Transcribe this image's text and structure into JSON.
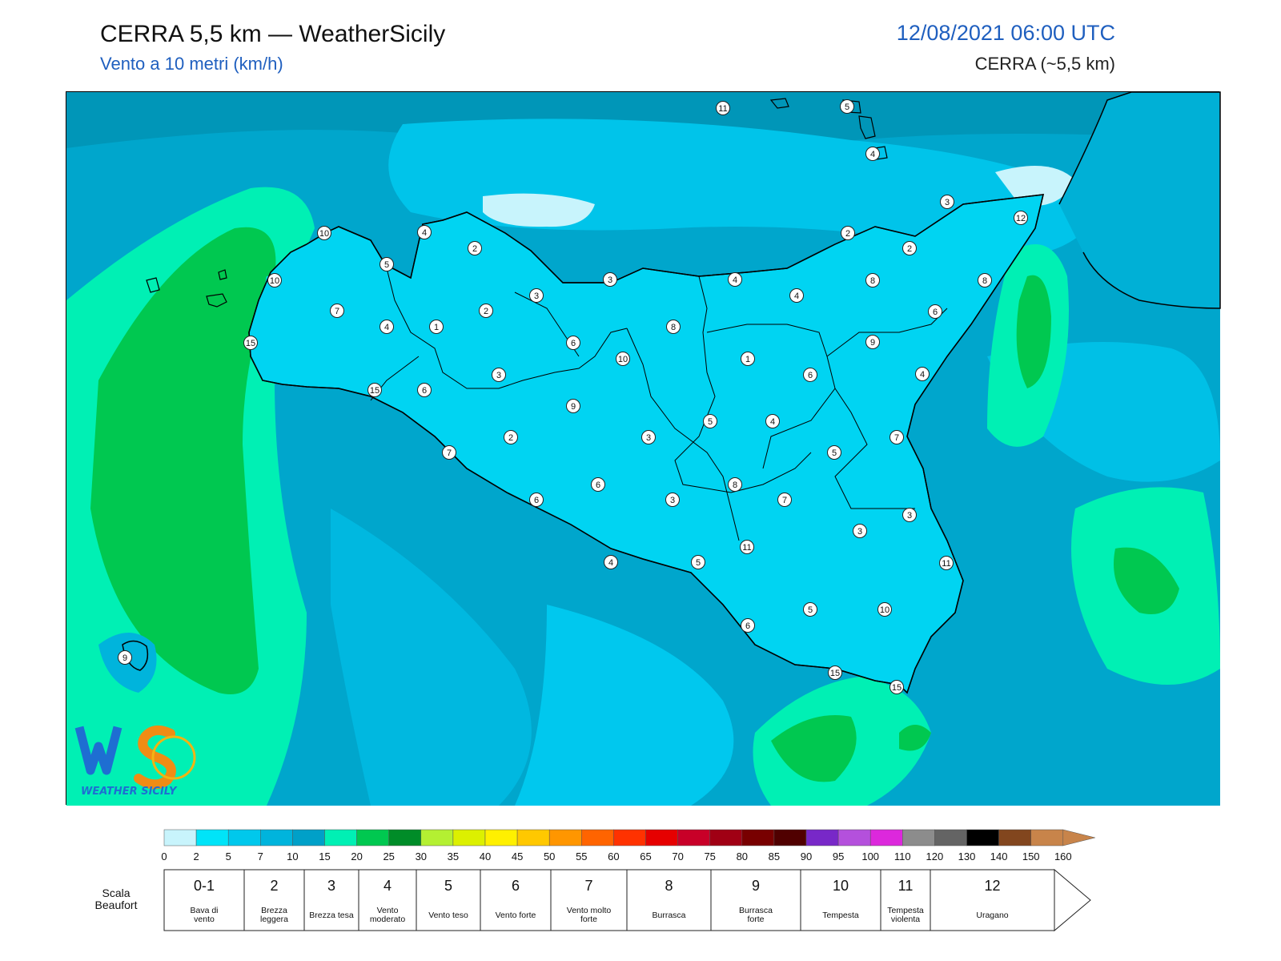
{
  "header": {
    "title": "CERRA 5,5 km — WeatherSicily",
    "subtitle": "Vento a 10 metri (km/h)",
    "datetime": "12/08/2021 06:00 UTC",
    "model": "CERRA (~5,5 km)"
  },
  "logo": {
    "text": "WEATHER SICILY",
    "mark": "WS"
  },
  "colors": {
    "sea_base": "#00a6cc",
    "land_fill": "#00d4f2",
    "coastline": "#000000"
  },
  "colorbar": {
    "ticks": [
      "0",
      "2",
      "5",
      "7",
      "10",
      "15",
      "20",
      "25",
      "30",
      "35",
      "40",
      "45",
      "50",
      "55",
      "60",
      "65",
      "70",
      "75",
      "80",
      "85",
      "90",
      "95",
      "100",
      "110",
      "120",
      "130",
      "140",
      "150",
      "160"
    ],
    "colors": [
      "#c8f4fc",
      "#00e4f8",
      "#00c8ec",
      "#00b4dc",
      "#00a0c8",
      "#00f0b4",
      "#00c850",
      "#008c28",
      "#b4f032",
      "#dcf000",
      "#fff000",
      "#ffc800",
      "#ff9600",
      "#ff6400",
      "#ff3200",
      "#e60000",
      "#c80028",
      "#a00014",
      "#780000",
      "#500000",
      "#7828c8",
      "#b450dc",
      "#dc28dc",
      "#8c8c8c",
      "#646464",
      "#000000",
      "#82461e",
      "#c8844a"
    ]
  },
  "beaufort": {
    "label": "Scala Beaufort",
    "classes": [
      {
        "num": "0-1",
        "desc": "Bava di vento"
      },
      {
        "num": "2",
        "desc": "Brezza leggera"
      },
      {
        "num": "3",
        "desc": "Brezza tesa"
      },
      {
        "num": "4",
        "desc": "Vento moderato"
      },
      {
        "num": "5",
        "desc": "Vento teso"
      },
      {
        "num": "6",
        "desc": "Vento forte"
      },
      {
        "num": "7",
        "desc": "Vento molto forte"
      },
      {
        "num": "8",
        "desc": "Burrasca"
      },
      {
        "num": "9",
        "desc": "Burrasca forte"
      },
      {
        "num": "10",
        "desc": "Tempesta"
      },
      {
        "num": "11",
        "desc": "Tempesta violenta"
      },
      {
        "num": "12",
        "desc": "Uragano"
      }
    ]
  },
  "stations": [
    {
      "value": "11"
    },
    {
      "value": "5"
    },
    {
      "value": "4"
    },
    {
      "value": "3"
    },
    {
      "value": "12"
    },
    {
      "value": "2"
    },
    {
      "value": "2"
    },
    {
      "value": "10"
    },
    {
      "value": "4"
    },
    {
      "value": "2"
    },
    {
      "value": "5"
    },
    {
      "value": "10"
    },
    {
      "value": "3"
    },
    {
      "value": "3"
    },
    {
      "value": "4"
    },
    {
      "value": "4"
    },
    {
      "value": "8"
    },
    {
      "value": "8"
    },
    {
      "value": "7"
    },
    {
      "value": "2"
    },
    {
      "value": "4"
    },
    {
      "value": "1"
    },
    {
      "value": "8"
    },
    {
      "value": "6"
    },
    {
      "value": "15"
    },
    {
      "value": "6"
    },
    {
      "value": "10"
    },
    {
      "value": "1"
    },
    {
      "value": "9"
    },
    {
      "value": "3"
    },
    {
      "value": "6"
    },
    {
      "value": "4"
    },
    {
      "value": "15"
    },
    {
      "value": "6"
    },
    {
      "value": "9"
    },
    {
      "value": "5"
    },
    {
      "value": "4"
    },
    {
      "value": "2"
    },
    {
      "value": "3"
    },
    {
      "value": "7"
    },
    {
      "value": "7"
    },
    {
      "value": "5"
    },
    {
      "value": "6"
    },
    {
      "value": "8"
    },
    {
      "value": "6"
    },
    {
      "value": "3"
    },
    {
      "value": "7"
    },
    {
      "value": "3"
    },
    {
      "value": "3"
    },
    {
      "value": "11"
    },
    {
      "value": "4"
    },
    {
      "value": "5"
    },
    {
      "value": "11"
    },
    {
      "value": "5"
    },
    {
      "value": "10"
    },
    {
      "value": "6"
    },
    {
      "value": "9"
    },
    {
      "value": "15"
    },
    {
      "value": "15"
    }
  ]
}
